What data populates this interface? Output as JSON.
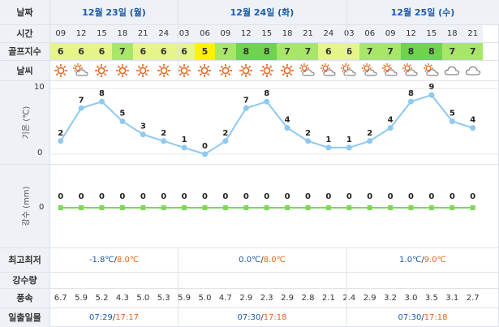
{
  "labels": {
    "date": "날짜",
    "time": "시간",
    "golf_index": "골프지수",
    "weather": "날씨",
    "temp_axis": "기온 (℃)",
    "precip_axis": "강수 (mm)",
    "minmax": "최고최저",
    "precip_amount": "강수량",
    "wind_speed": "풍속",
    "sunrise_sunset": "일출일몰"
  },
  "days": [
    {
      "label": "12월 23일 (월)",
      "min": "-1.8℃",
      "max": "8.0℃",
      "sunrise": "07:29",
      "sunset": "17:17"
    },
    {
      "label": "12월 24일 (화)",
      "min": "0.0℃",
      "max": "8.0℃",
      "sunrise": "07:30",
      "sunset": "17:18"
    },
    {
      "label": "12월 25일 (수)",
      "min": "1.0℃",
      "max": "9.0℃",
      "sunrise": "07:30",
      "sunset": "17:18"
    }
  ],
  "hours": [
    "09",
    "12",
    "15",
    "18",
    "21",
    "24",
    "03",
    "06",
    "09",
    "12",
    "15",
    "18",
    "21",
    "24",
    "03",
    "06",
    "09",
    "12",
    "15",
    "18",
    "21"
  ],
  "golf_index": [
    "6",
    "6",
    "6",
    "7",
    "6",
    "6",
    "6",
    "5",
    "7",
    "8",
    "8",
    "7",
    "7",
    "6",
    "6",
    "7",
    "7",
    "8",
    "8",
    "7",
    "7"
  ],
  "weather_icons": [
    "sun",
    "partly-cloudy",
    "sun",
    "sun",
    "sun",
    "sun",
    "sun",
    "sun",
    "sun",
    "sun",
    "sun",
    "sun",
    "partly-cloudy",
    "partly-cloudy",
    "partly-cloudy",
    "partly-cloudy",
    "partly-cloudy",
    "partly-cloudy",
    "partly-cloudy",
    "cloud",
    "cloud"
  ],
  "wind_speed": [
    "6.7",
    "5.9",
    "5.2",
    "4.3",
    "5.0",
    "5.3",
    "5.9",
    "5.0",
    "4.7",
    "2.9",
    "2.3",
    "2.9",
    "2.8",
    "2.1",
    "2.4",
    "2.9",
    "3.2",
    "3.0",
    "3.5",
    "3.1",
    "2.7"
  ],
  "colors": {
    "golf_5": "#fff200",
    "golf_6": "#e6f58a",
    "golf_7": "#a8e66a",
    "golf_8": "#6fd34f",
    "temp_line": "#8ec9f0",
    "precip_line": "#7ed957",
    "sun": "#e2661f",
    "cloud": "#888888"
  },
  "chart_data": [
    {
      "type": "line",
      "title": "",
      "ylabel": "기온 (℃)",
      "x": [
        "09",
        "12",
        "15",
        "18",
        "21",
        "24",
        "03",
        "06",
        "09",
        "12",
        "15",
        "18",
        "21",
        "24",
        "03",
        "06",
        "09",
        "12",
        "15",
        "18",
        "21"
      ],
      "values": [
        2,
        7,
        8,
        5,
        3,
        2,
        1,
        0,
        2,
        7,
        8,
        4,
        2,
        1,
        1,
        2,
        4,
        8,
        9,
        5,
        4
      ],
      "ylim": [
        0,
        10
      ],
      "yticks": [
        "10",
        "0"
      ]
    },
    {
      "type": "line",
      "title": "",
      "ylabel": "강수 (mm)",
      "x": [
        "09",
        "12",
        "15",
        "18",
        "21",
        "24",
        "03",
        "06",
        "09",
        "12",
        "15",
        "18",
        "21",
        "24",
        "03",
        "06",
        "09",
        "12",
        "15",
        "18",
        "21"
      ],
      "values": [
        0,
        0,
        0,
        0,
        0,
        0,
        0,
        0,
        0,
        0,
        0,
        0,
        0,
        0,
        0,
        0,
        0,
        0,
        0,
        0,
        0
      ],
      "yticks": [
        "0"
      ]
    }
  ]
}
